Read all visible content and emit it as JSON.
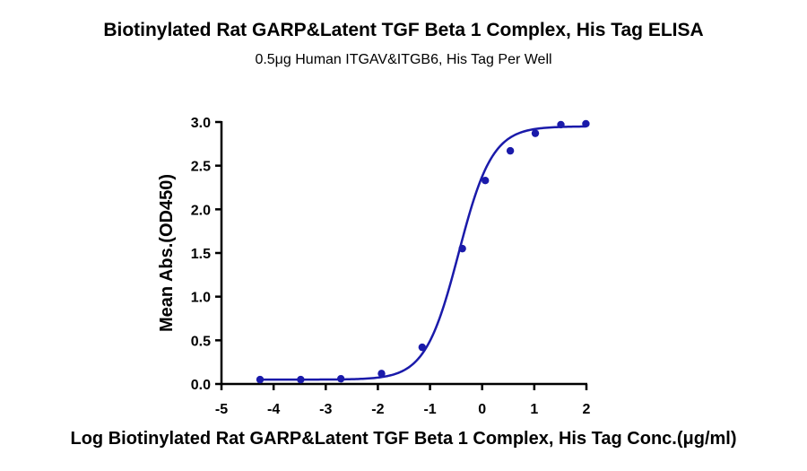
{
  "chart_data": {
    "type": "scatter",
    "title": "Biotinylated  Rat GARP&Latent TGF Beta 1 Complex, His Tag ELISA",
    "subtitle": "0.5μg Human ITGAV&ITGB6, His Tag Per Well",
    "xlabel": "Log Biotinylated  Rat GARP&Latent TGF Beta 1 Complex, His Tag Conc.(μg/ml)",
    "ylabel": "Mean Abs.(OD450)",
    "xlim": [
      -5,
      2
    ],
    "ylim": [
      0,
      3.0
    ],
    "x_ticks": [
      "-5",
      "-4",
      "-3",
      "-2",
      "-1",
      "0",
      "1",
      "2"
    ],
    "y_ticks": [
      "0.0",
      "0.5",
      "1.0",
      "1.5",
      "2.0",
      "2.5",
      "3.0"
    ],
    "grid": false,
    "series": [
      {
        "x": [
          -4.26,
          -3.48,
          -2.71,
          -1.93,
          -1.15,
          -0.38,
          0.06,
          0.54,
          1.02,
          1.51,
          1.99
        ],
        "y": [
          0.05,
          0.05,
          0.06,
          0.12,
          0.42,
          1.55,
          2.33,
          2.67,
          2.87,
          2.97,
          2.98
        ],
        "color": "#1a1aaa",
        "fit": "4PL sigmoidal curve"
      }
    ]
  }
}
